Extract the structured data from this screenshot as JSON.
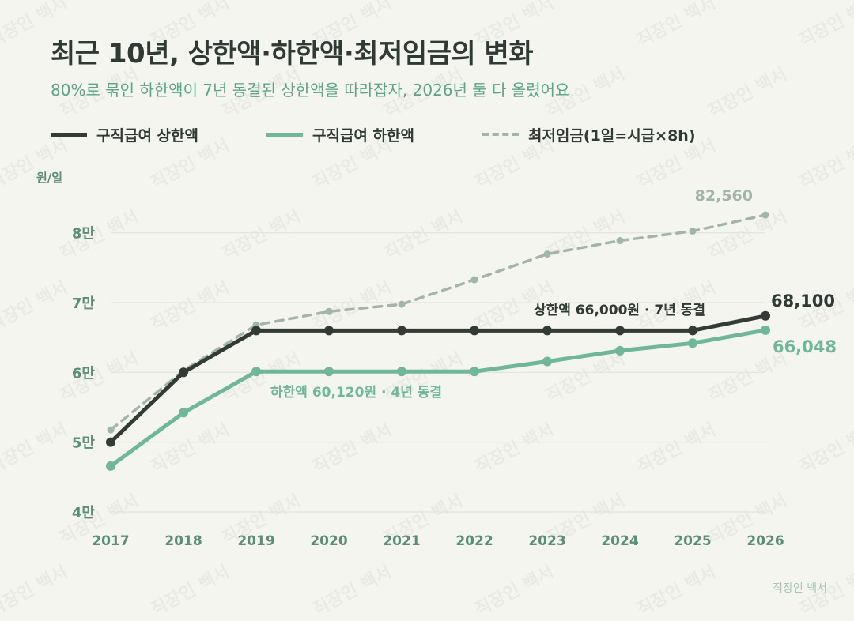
{
  "header": {
    "title": "최근 10년, 상한액·하한액·최저임금의 변화",
    "subtitle": "80%로 묶인 하한액이 7년 동결된 상한액을 따라잡자, 2026년 둘 다 올렸어요"
  },
  "footer": {
    "brand": "직장인 백서"
  },
  "watermark": "직장인 백서",
  "colors": {
    "upper": "#323b35",
    "lower": "#6fb69a",
    "minwage": "#a2b5aa",
    "axis": "#5a8f75"
  },
  "chart_data": {
    "type": "line",
    "ylabel": "원/일",
    "x": [
      "2017",
      "2018",
      "2019",
      "2020",
      "2021",
      "2022",
      "2023",
      "2024",
      "2025",
      "2026"
    ],
    "ylim": [
      40000,
      85000
    ],
    "y_ticks": [
      {
        "value": 80000,
        "label": "8만"
      },
      {
        "value": 70000,
        "label": "7만"
      },
      {
        "value": 60000,
        "label": "6만"
      },
      {
        "value": 50000,
        "label": "5만"
      },
      {
        "value": 40000,
        "label": "4만"
      }
    ],
    "grid": true,
    "legend": "top-left",
    "series": [
      {
        "key": "upper",
        "name": "구직급여 상한액",
        "style": "solid",
        "values": [
          50000,
          60000,
          66000,
          66000,
          66000,
          66000,
          66000,
          66000,
          66000,
          68100
        ]
      },
      {
        "key": "lower",
        "name": "구직급여 하한액",
        "style": "solid",
        "values": [
          46584,
          54216,
          60120,
          60120,
          60120,
          60120,
          61568,
          63104,
          64192,
          66048
        ]
      },
      {
        "key": "minwage",
        "name": "최저임금(1일=시급×8h)",
        "style": "dashed",
        "values": [
          51760,
          60240,
          66800,
          68720,
          69760,
          73280,
          76960,
          78880,
          80240,
          82560
        ]
      }
    ],
    "annotations": [
      {
        "id": "upper-freeze",
        "text": "상한액 66,000원 · 7년 동결"
      },
      {
        "id": "lower-freeze",
        "text": "하한액 60,120원 · 4년 동결"
      },
      {
        "id": "minwage-end",
        "text": "82,560"
      },
      {
        "id": "upper-end",
        "text": "68,100"
      },
      {
        "id": "lower-end",
        "text": "66,048"
      }
    ]
  }
}
